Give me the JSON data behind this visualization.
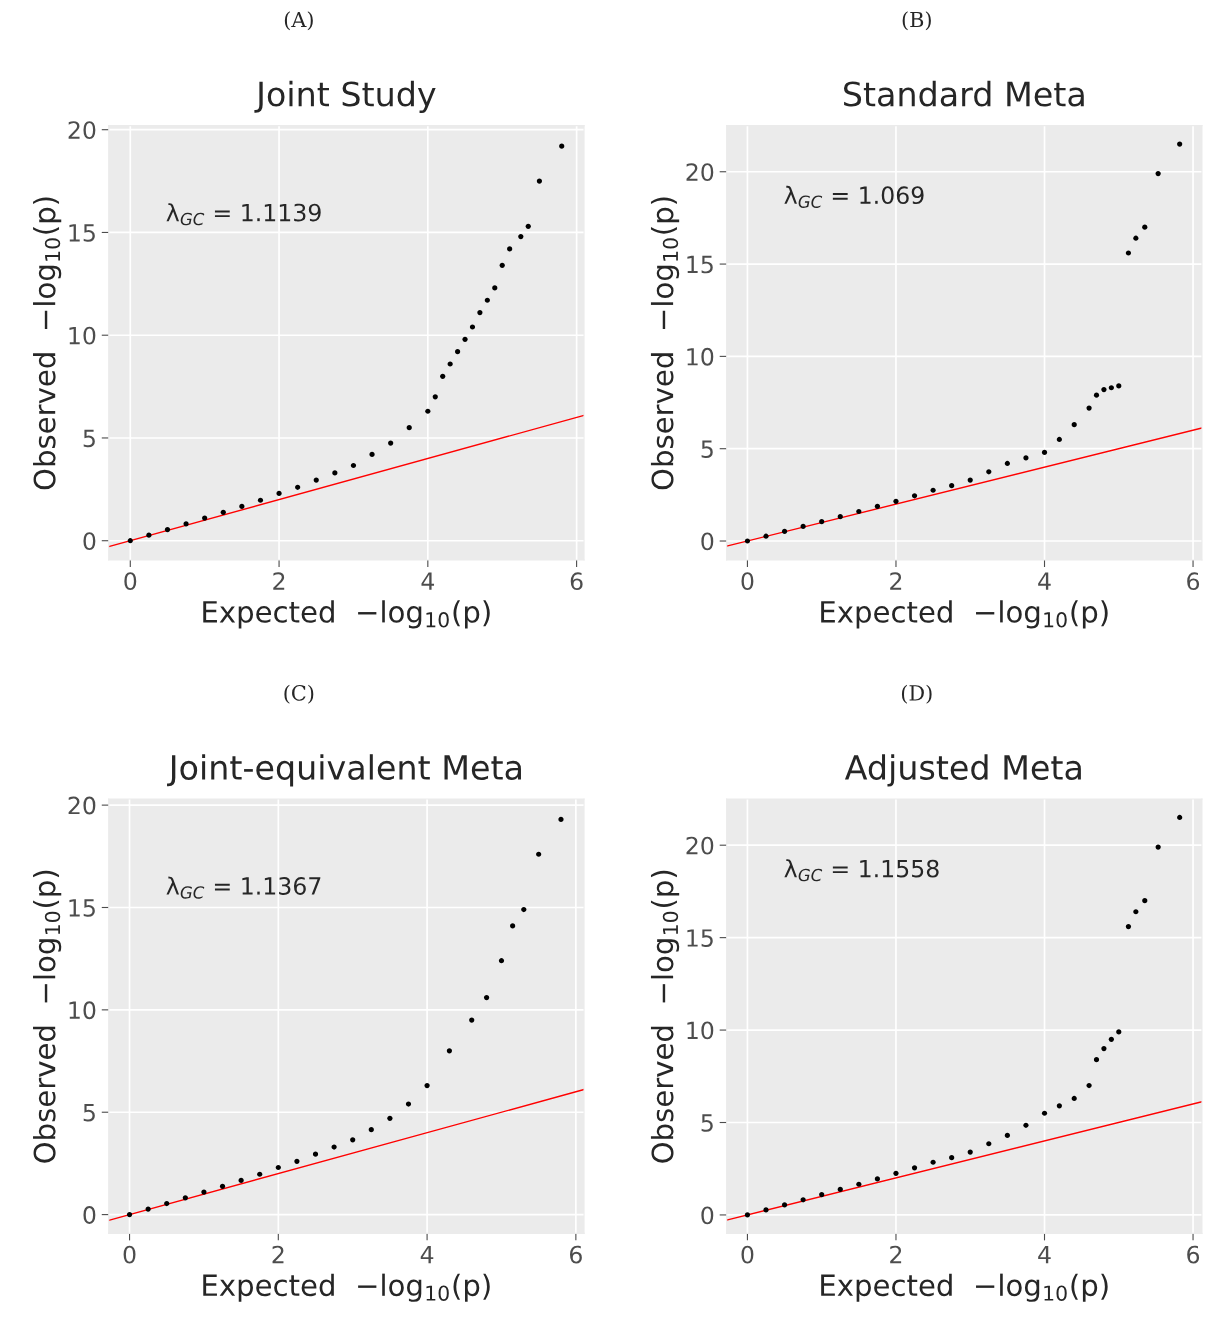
{
  "chart_data": [
    {
      "type": "scatter",
      "title": "Joint Study",
      "subtitle": "(A)",
      "xlabel": "Expected  −log$_{10}$(p)",
      "ylabel": "Observed  −log$_{10}$(p)",
      "annotations": [
        "λ$_{GC}$ = 1.1139"
      ],
      "xlim": [
        -0.29,
        6.1
      ],
      "ylim": [
        -0.94,
        20.2
      ],
      "xticks": [
        0,
        2,
        4,
        6
      ],
      "yticks": [
        0,
        5,
        10,
        15,
        20
      ],
      "grid": true,
      "series": [
        {
          "marker": "circle",
          "color": "#000000",
          "x": [
            0,
            0.25,
            0.5,
            0.75,
            1,
            1.25,
            1.5,
            1.75,
            2,
            2.25,
            2.5,
            2.75,
            3,
            3.25,
            3.5,
            3.75,
            4,
            4.1,
            4.2,
            4.3,
            4.4,
            4.5,
            4.6,
            4.7,
            4.8,
            4.9,
            5.0,
            5.1,
            5.25,
            5.35,
            5.5,
            5.8
          ],
          "values": [
            0,
            0.27,
            0.54,
            0.82,
            1.1,
            1.38,
            1.67,
            1.97,
            2.3,
            2.6,
            2.95,
            3.3,
            3.66,
            4.2,
            4.75,
            5.5,
            6.3,
            7.0,
            8.0,
            8.6,
            9.2,
            9.8,
            10.4,
            11.1,
            11.7,
            12.3,
            13.4,
            14.2,
            14.8,
            15.3,
            17.5,
            19.2
          ]
        },
        {
          "type": "line",
          "color": "#ff0000",
          "x": [
            -0.29,
            6.1
          ],
          "values": [
            -0.29,
            6.1
          ]
        }
      ]
    },
    {
      "type": "scatter",
      "title": "Standard Meta",
      "subtitle": "(B)",
      "xlabel": "Expected  −log$_{10}$(p)",
      "ylabel": "Observed  −log$_{10}$(p)",
      "annotations": [
        "λ$_{GC}$ = 1.069"
      ],
      "xlim": [
        -0.28,
        6.12
      ],
      "ylim": [
        -1.03,
        22.5
      ],
      "xticks": [
        0,
        2,
        4,
        6
      ],
      "yticks": [
        0,
        5,
        10,
        15,
        20
      ],
      "grid": true,
      "series": [
        {
          "marker": "circle",
          "color": "#000000",
          "x": [
            0,
            0.25,
            0.5,
            0.75,
            1,
            1.25,
            1.5,
            1.75,
            2,
            2.25,
            2.5,
            2.75,
            3,
            3.25,
            3.5,
            3.75,
            4,
            4.2,
            4.4,
            4.6,
            4.7,
            4.8,
            4.9,
            5.0,
            5.13,
            5.23,
            5.35,
            5.53,
            5.82
          ],
          "values": [
            0,
            0.26,
            0.52,
            0.79,
            1.05,
            1.32,
            1.6,
            1.88,
            2.15,
            2.45,
            2.75,
            3.0,
            3.3,
            3.75,
            4.2,
            4.5,
            4.8,
            5.5,
            6.3,
            7.2,
            7.9,
            8.2,
            8.3,
            8.4,
            15.6,
            16.4,
            17.0,
            19.9,
            21.5
          ]
        },
        {
          "type": "line",
          "color": "#ff0000",
          "x": [
            -0.28,
            6.12
          ],
          "values": [
            -0.28,
            6.12
          ]
        }
      ]
    },
    {
      "type": "scatter",
      "title": "Joint-equivalent Meta",
      "subtitle": "(C)",
      "xlabel": "Expected  −log$_{10}$(p)",
      "ylabel": "Observed  −log$_{10}$(p)",
      "annotations": [
        "λ$_{GC}$ = 1.1367"
      ],
      "xlim": [
        -0.28,
        6.11
      ],
      "ylim": [
        -0.92,
        20.3
      ],
      "xticks": [
        0,
        2,
        4,
        6
      ],
      "yticks": [
        0,
        5,
        10,
        15,
        20
      ],
      "grid": true,
      "series": [
        {
          "marker": "circle",
          "color": "#000000",
          "x": [
            0,
            0.25,
            0.5,
            0.75,
            1,
            1.25,
            1.5,
            1.75,
            2,
            2.25,
            2.5,
            2.75,
            3,
            3.25,
            3.5,
            3.75,
            4,
            4.3,
            4.6,
            4.8,
            5.0,
            5.15,
            5.3,
            5.5,
            5.8
          ],
          "values": [
            0,
            0.27,
            0.54,
            0.82,
            1.1,
            1.38,
            1.67,
            1.97,
            2.3,
            2.6,
            2.95,
            3.3,
            3.65,
            4.15,
            4.7,
            5.4,
            6.3,
            8.0,
            9.5,
            10.6,
            12.4,
            14.1,
            14.9,
            17.6,
            19.3
          ]
        },
        {
          "type": "line",
          "color": "#ff0000",
          "x": [
            -0.28,
            6.11
          ],
          "values": [
            -0.28,
            6.11
          ]
        }
      ]
    },
    {
      "type": "scatter",
      "title": "Adjusted Meta",
      "subtitle": "(D)",
      "xlabel": "Expected  −log$_{10}$(p)",
      "ylabel": "Observed  −log$_{10}$(p)",
      "annotations": [
        "λ$_{GC}$ = 1.1558"
      ],
      "xlim": [
        -0.28,
        6.12
      ],
      "ylim": [
        -1.0,
        22.5
      ],
      "xticks": [
        0,
        2,
        4,
        6
      ],
      "yticks": [
        0,
        5,
        10,
        15,
        20
      ],
      "grid": true,
      "series": [
        {
          "marker": "circle",
          "color": "#000000",
          "x": [
            0,
            0.25,
            0.5,
            0.75,
            1,
            1.25,
            1.5,
            1.75,
            2,
            2.25,
            2.5,
            2.75,
            3,
            3.25,
            3.5,
            3.75,
            4,
            4.2,
            4.4,
            4.6,
            4.7,
            4.8,
            4.9,
            5.0,
            5.13,
            5.23,
            5.35,
            5.53,
            5.82
          ],
          "values": [
            0,
            0.27,
            0.54,
            0.82,
            1.1,
            1.38,
            1.66,
            1.95,
            2.25,
            2.55,
            2.85,
            3.1,
            3.4,
            3.85,
            4.3,
            4.85,
            5.5,
            5.9,
            6.3,
            7.0,
            8.4,
            9.0,
            9.5,
            9.9,
            15.6,
            16.4,
            17.0,
            19.9,
            21.5
          ]
        },
        {
          "type": "line",
          "color": "#ff0000",
          "x": [
            -0.28,
            6.12
          ],
          "values": [
            -0.28,
            6.12
          ]
        }
      ]
    }
  ]
}
